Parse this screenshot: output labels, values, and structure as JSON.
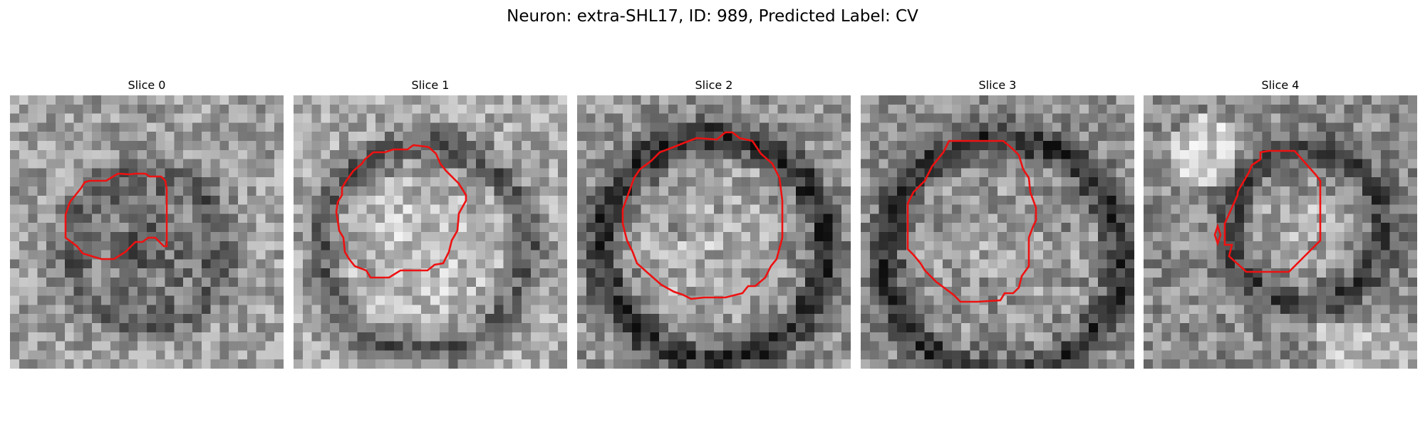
{
  "figure": {
    "title": "Neuron: extra-SHL17, ID: 989, Predicted Label: CV"
  },
  "colors": {
    "contour": "#ee1111",
    "background": "#ffffff",
    "image_colormap": "grayscale"
  },
  "slices": [
    {
      "title": "Slice 0"
    },
    {
      "title": "Slice 1"
    },
    {
      "title": "Slice 2"
    },
    {
      "title": "Slice 3"
    },
    {
      "title": "Slice 4"
    }
  ]
}
